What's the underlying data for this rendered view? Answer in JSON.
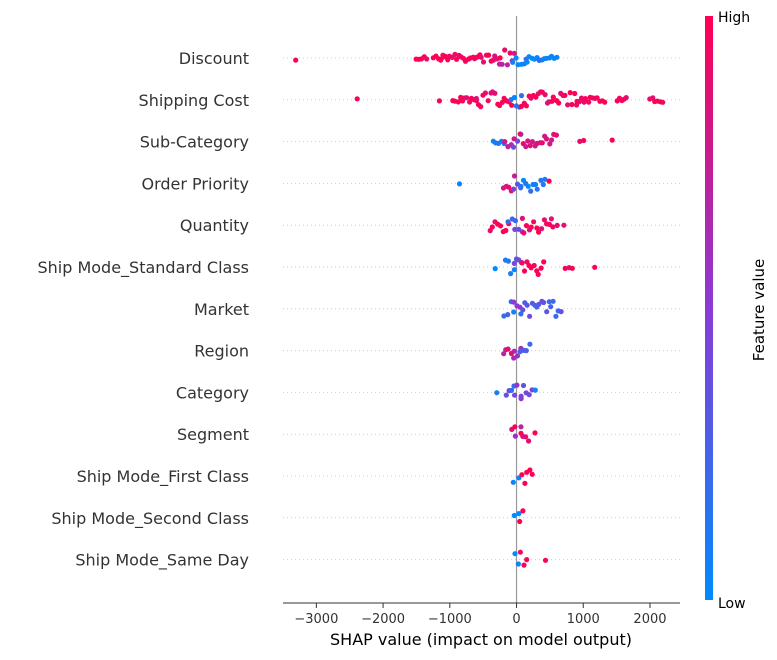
{
  "chart_data": {
    "type": "scatter",
    "subtype": "shap-beeswarm",
    "title": "",
    "xlabel": "SHAP value (impact on model output)",
    "xlim": [
      -3500,
      2450
    ],
    "xticks": [
      -3000,
      -2000,
      -1000,
      0,
      1000,
      2000
    ],
    "xtick_labels": [
      "−3000",
      "−2000",
      "−1000",
      "0",
      "1000",
      "2000"
    ],
    "colorbar": {
      "title": "Feature value",
      "high_label": "High",
      "low_label": "Low",
      "high_color": "#ff0052",
      "low_color": "#008bfb"
    },
    "colors": {
      "high": "#ff0052",
      "mid": "#8a3bd6",
      "low": "#008bfb",
      "zero_line": "#999999",
      "row_guides": "#cccccc",
      "text": "#333333"
    },
    "features": [
      {
        "name": "Discount",
        "points": [
          {
            "min": -3300,
            "max": -3300,
            "v": 1
          },
          {
            "min": -1500,
            "max": -1350,
            "v": 1
          },
          {
            "min": -1250,
            "max": -1100,
            "v": 1
          },
          {
            "min": -1100,
            "max": -250,
            "v": 0.95
          },
          {
            "min": -250,
            "max": -30,
            "v": 0.8
          },
          {
            "min": -50,
            "max": 150,
            "v": 0
          },
          {
            "min": 150,
            "max": 420,
            "v": 0.05
          },
          {
            "min": 450,
            "max": 600,
            "v": 0
          }
        ]
      },
      {
        "name": "Shipping Cost",
        "points": [
          {
            "min": -2380,
            "max": -2380,
            "v": 1
          },
          {
            "min": -1150,
            "max": -1150,
            "v": 1
          },
          {
            "min": -950,
            "max": -600,
            "v": 1
          },
          {
            "min": -600,
            "max": -80,
            "v": 0.95
          },
          {
            "min": -80,
            "max": 80,
            "v": 0.1
          },
          {
            "min": 80,
            "max": 900,
            "v": 0.95
          },
          {
            "min": 900,
            "max": 1320,
            "v": 1
          },
          {
            "min": 1500,
            "max": 1650,
            "v": 1
          },
          {
            "min": 2000,
            "max": 2200,
            "v": 1
          }
        ]
      },
      {
        "name": "Sub-Category",
        "points": [
          {
            "min": -350,
            "max": -180,
            "v": 0.05
          },
          {
            "min": -180,
            "max": -40,
            "v": 0.7
          },
          {
            "min": -40,
            "max": 60,
            "v": 0.35
          },
          {
            "min": 60,
            "max": 600,
            "v": 0.85
          },
          {
            "min": 950,
            "max": 1000,
            "v": 1
          },
          {
            "min": 1430,
            "max": 1450,
            "v": 1
          }
        ]
      },
      {
        "name": "Order Priority",
        "points": [
          {
            "min": -850,
            "max": -850,
            "v": 0
          },
          {
            "min": -200,
            "max": -40,
            "v": 0.85
          },
          {
            "min": -40,
            "max": 60,
            "v": 0.4
          },
          {
            "min": 60,
            "max": 430,
            "v": 0.1
          },
          {
            "min": 480,
            "max": 500,
            "v": 1
          }
        ]
      },
      {
        "name": "Quantity",
        "points": [
          {
            "min": -400,
            "max": -120,
            "v": 1
          },
          {
            "min": -120,
            "max": -20,
            "v": 0.3
          },
          {
            "min": -20,
            "max": 80,
            "v": 0.5
          },
          {
            "min": 80,
            "max": 520,
            "v": 0.95
          },
          {
            "min": 550,
            "max": 600,
            "v": 1
          },
          {
            "min": 700,
            "max": 720,
            "v": 1
          }
        ]
      },
      {
        "name": "Ship Mode_Standard Class",
        "points": [
          {
            "min": -320,
            "max": -320,
            "v": 0
          },
          {
            "min": -160,
            "max": -40,
            "v": 0.05
          },
          {
            "min": -40,
            "max": 80,
            "v": 0.4
          },
          {
            "min": 80,
            "max": 400,
            "v": 1
          },
          {
            "min": 730,
            "max": 840,
            "v": 1
          },
          {
            "min": 1170,
            "max": 1190,
            "v": 1
          }
        ]
      },
      {
        "name": "Market",
        "points": [
          {
            "min": -180,
            "max": -40,
            "v": 0.15
          },
          {
            "min": -40,
            "max": 60,
            "v": 0.55
          },
          {
            "min": 60,
            "max": 660,
            "v": 0.3
          }
        ]
      },
      {
        "name": "Region",
        "points": [
          {
            "min": -200,
            "max": -40,
            "v": 0.8
          },
          {
            "min": -40,
            "max": 60,
            "v": 0.6
          },
          {
            "min": 60,
            "max": 200,
            "v": 0.35
          }
        ]
      },
      {
        "name": "Category",
        "points": [
          {
            "min": -300,
            "max": -300,
            "v": 0
          },
          {
            "min": -160,
            "max": -30,
            "v": 0.3
          },
          {
            "min": -30,
            "max": 60,
            "v": 0.5
          },
          {
            "min": 60,
            "max": 230,
            "v": 0.4
          },
          {
            "min": 280,
            "max": 300,
            "v": 0
          }
        ]
      },
      {
        "name": "Segment",
        "points": [
          {
            "min": -80,
            "max": -20,
            "v": 1
          },
          {
            "min": -20,
            "max": 60,
            "v": 0.6
          },
          {
            "min": 60,
            "max": 180,
            "v": 1
          },
          {
            "min": 260,
            "max": 280,
            "v": 1
          }
        ]
      },
      {
        "name": "Ship Mode_First Class",
        "points": [
          {
            "min": -40,
            "max": 40,
            "v": 0
          },
          {
            "min": 80,
            "max": 240,
            "v": 1
          }
        ]
      },
      {
        "name": "Ship Mode_Second Class",
        "points": [
          {
            "min": -40,
            "max": 40,
            "v": 0.1
          },
          {
            "min": 40,
            "max": 90,
            "v": 1
          }
        ]
      },
      {
        "name": "Ship Mode_Same Day",
        "points": [
          {
            "min": -30,
            "max": 30,
            "v": 0
          },
          {
            "min": 50,
            "max": 160,
            "v": 1
          },
          {
            "min": 420,
            "max": 440,
            "v": 1
          }
        ]
      }
    ]
  }
}
